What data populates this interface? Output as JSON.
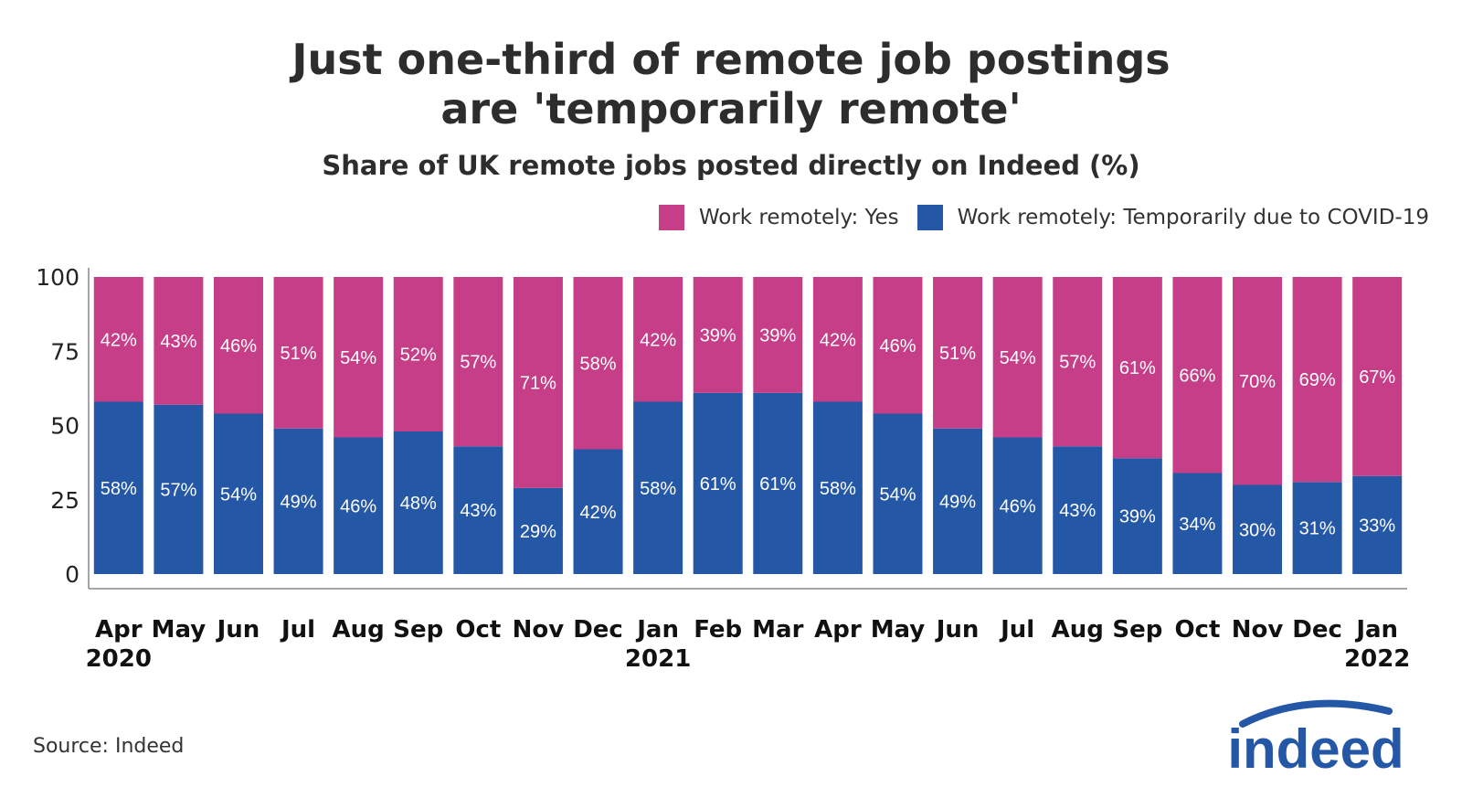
{
  "chart_data": {
    "type": "bar",
    "stacked": true,
    "title": [
      "Just one-third of remote job postings",
      "are 'temporarily remote'"
    ],
    "subtitle": "Share of UK remote jobs posted directly on Indeed (%)",
    "ylim": [
      0,
      100
    ],
    "yticks": [
      0,
      25,
      50,
      75,
      100
    ],
    "categories": [
      "Apr",
      "May",
      "Jun",
      "Jul",
      "Aug",
      "Sep",
      "Oct",
      "Nov",
      "Dec",
      "Jan",
      "Feb",
      "Mar",
      "Apr",
      "May",
      "Jun",
      "Jul",
      "Aug",
      "Sep",
      "Oct",
      "Nov",
      "Dec",
      "Jan"
    ],
    "year_labels": [
      "2020",
      "",
      "",
      "",
      "",
      "",
      "",
      "",
      "",
      "2021",
      "",
      "",
      "",
      "",
      "",
      "",
      "",
      "",
      "",
      "",
      "",
      "2022"
    ],
    "series": [
      {
        "name": "Work remotely: Temporarily due to COVID-19",
        "color": "#2557a7",
        "values": [
          58,
          57,
          54,
          49,
          46,
          48,
          43,
          29,
          42,
          58,
          61,
          61,
          58,
          54,
          49,
          46,
          43,
          39,
          34,
          30,
          31,
          33
        ]
      },
      {
        "name": "Work remotely: Yes",
        "color": "#c73e88",
        "values": [
          42,
          43,
          46,
          51,
          54,
          52,
          57,
          71,
          58,
          42,
          39,
          39,
          42,
          46,
          51,
          54,
          57,
          61,
          66,
          70,
          69,
          67
        ]
      }
    ],
    "label_suffix": "%",
    "legend": [
      "Work remotely: Yes",
      "Work remotely: Temporarily due to COVID-19"
    ]
  },
  "source": "Source: Indeed",
  "logo_text": "indeed",
  "colors": {
    "yes": "#c73e88",
    "temporary": "#2557a7",
    "axis": "#888888"
  }
}
